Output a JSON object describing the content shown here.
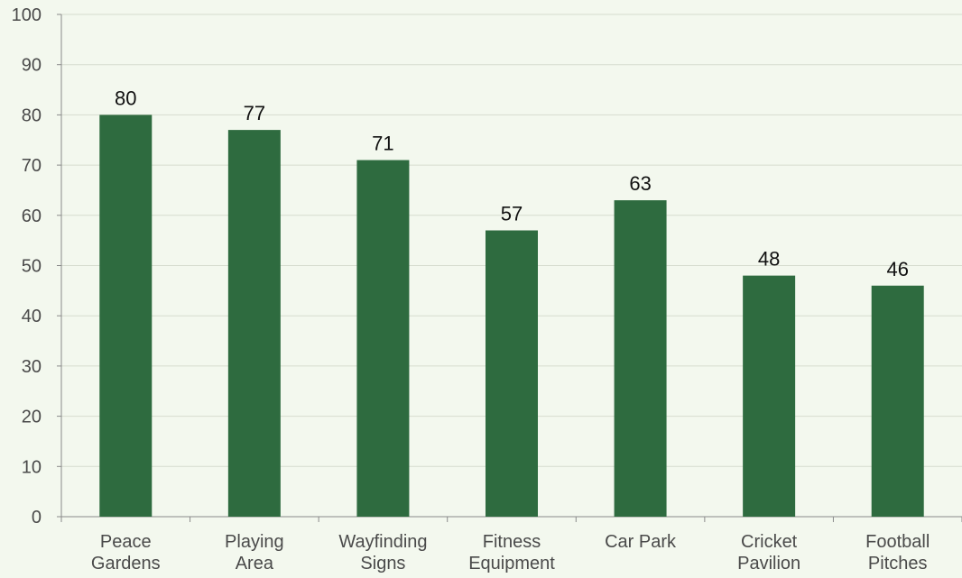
{
  "colors": {
    "background": "#f3f8ee",
    "bar": "#2e6b3f",
    "axis_text": "#4a4a4a",
    "grid": "#d6dccf",
    "axis_line": "#8a8a8a",
    "data_label": "#111111"
  },
  "chart_data": {
    "type": "bar",
    "title": "",
    "xlabel": "",
    "ylabel": "",
    "categories": [
      [
        "Peace",
        "Gardens"
      ],
      [
        "Playing",
        "Area"
      ],
      [
        "Wayfinding",
        "Signs"
      ],
      [
        "Fitness",
        "Equipment"
      ],
      [
        "Car Park"
      ],
      [
        "Cricket",
        "Pavilion"
      ],
      [
        "Football",
        "Pitches"
      ]
    ],
    "values": [
      80,
      77,
      71,
      57,
      63,
      48,
      46
    ],
    "ylim": [
      0,
      100
    ],
    "yticks": [
      0,
      10,
      20,
      30,
      40,
      50,
      60,
      70,
      80,
      90,
      100
    ],
    "grid": true,
    "data_labels": true,
    "legend": "none"
  }
}
